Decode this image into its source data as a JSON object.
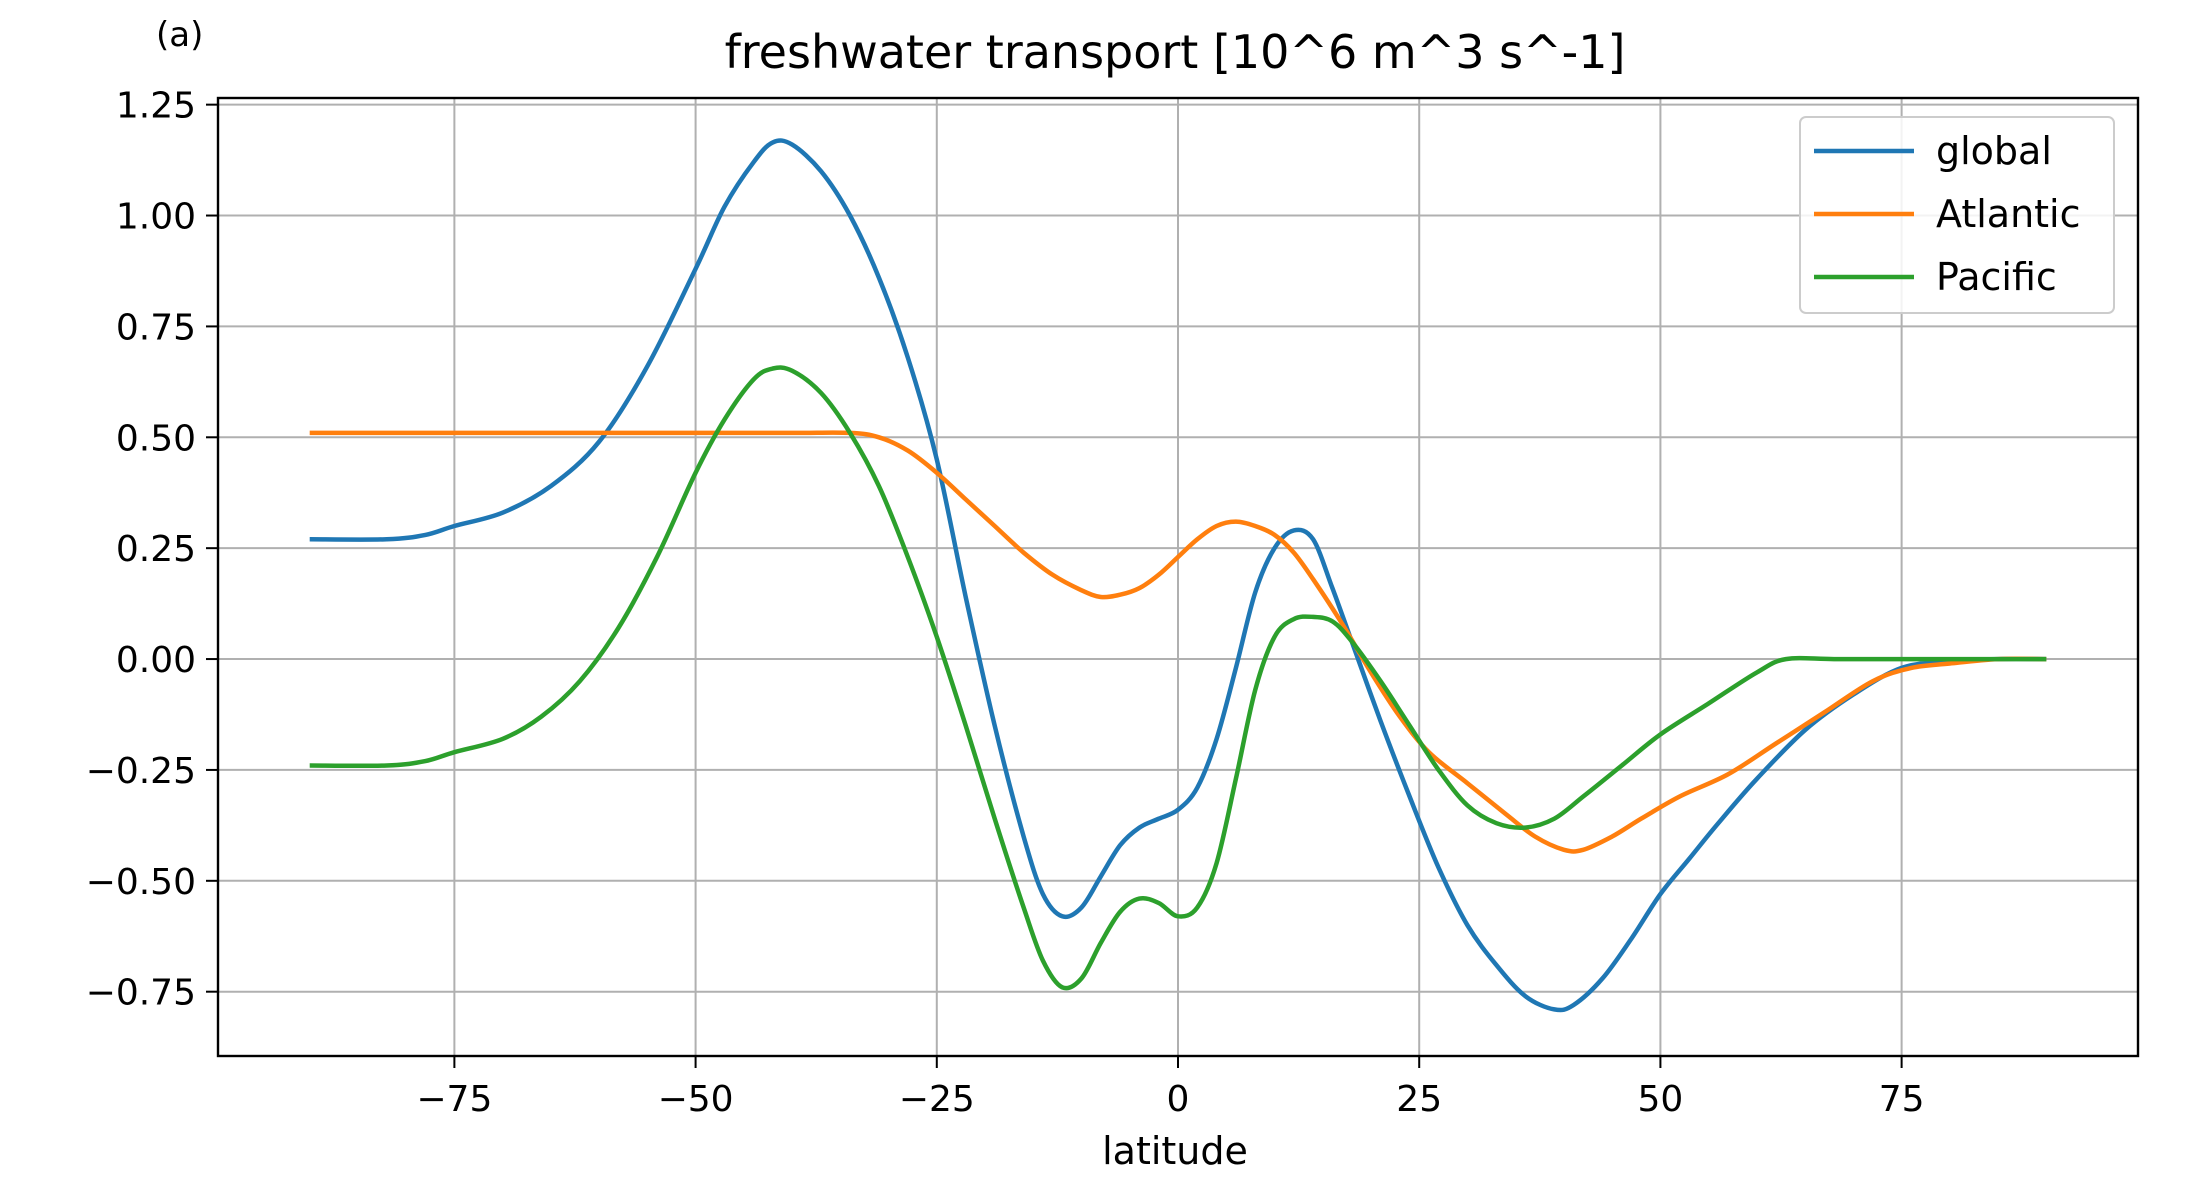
{
  "chart_data": {
    "type": "line",
    "panel_label": "(a)",
    "title": "freshwater transport [10^6 m^3 s^-1]",
    "xlabel": "latitude",
    "ylabel": "",
    "xlim": [
      -99.5,
      99.5
    ],
    "ylim": [
      -0.895,
      1.265
    ],
    "xticks": [
      -75,
      -50,
      -25,
      0,
      25,
      50,
      75
    ],
    "xtick_labels": [
      "−75",
      "−50",
      "−25",
      "0",
      "25",
      "50",
      "75"
    ],
    "yticks": [
      -0.75,
      -0.5,
      -0.25,
      0.0,
      0.25,
      0.5,
      0.75,
      1.0,
      1.25
    ],
    "ytick_labels": [
      "−0.75",
      "−0.50",
      "−0.25",
      "0.00",
      "0.25",
      "0.50",
      "0.75",
      "1.00",
      "1.25"
    ],
    "grid": true,
    "legend_position": "top-right",
    "series": [
      {
        "name": "global",
        "color": "#1f77b4",
        "points": [
          [
            -90,
            0.27
          ],
          [
            -82,
            0.27
          ],
          [
            -78,
            0.28
          ],
          [
            -75,
            0.3
          ],
          [
            -70,
            0.33
          ],
          [
            -65,
            0.39
          ],
          [
            -60,
            0.49
          ],
          [
            -55,
            0.66
          ],
          [
            -50,
            0.88
          ],
          [
            -47,
            1.02
          ],
          [
            -44,
            1.12
          ],
          [
            -42,
            1.165
          ],
          [
            -40,
            1.16
          ],
          [
            -37,
            1.1
          ],
          [
            -34,
            1.0
          ],
          [
            -31,
            0.86
          ],
          [
            -28,
            0.68
          ],
          [
            -25,
            0.45
          ],
          [
            -22,
            0.14
          ],
          [
            -19,
            -0.15
          ],
          [
            -16,
            -0.4
          ],
          [
            -14,
            -0.53
          ],
          [
            -12,
            -0.58
          ],
          [
            -10,
            -0.56
          ],
          [
            -8,
            -0.49
          ],
          [
            -6,
            -0.42
          ],
          [
            -4,
            -0.38
          ],
          [
            -2,
            -0.36
          ],
          [
            0,
            -0.34
          ],
          [
            2,
            -0.29
          ],
          [
            4,
            -0.18
          ],
          [
            6,
            -0.02
          ],
          [
            8,
            0.15
          ],
          [
            10,
            0.25
          ],
          [
            12,
            0.29
          ],
          [
            14,
            0.27
          ],
          [
            16,
            0.16
          ],
          [
            18,
            0.04
          ],
          [
            21,
            -0.14
          ],
          [
            24,
            -0.31
          ],
          [
            27,
            -0.47
          ],
          [
            30,
            -0.6
          ],
          [
            33,
            -0.69
          ],
          [
            36,
            -0.76
          ],
          [
            39,
            -0.79
          ],
          [
            41,
            -0.78
          ],
          [
            44,
            -0.72
          ],
          [
            47,
            -0.63
          ],
          [
            50,
            -0.53
          ],
          [
            53,
            -0.45
          ],
          [
            56,
            -0.37
          ],
          [
            60,
            -0.27
          ],
          [
            65,
            -0.16
          ],
          [
            70,
            -0.08
          ],
          [
            75,
            -0.02
          ],
          [
            80,
            -0.005
          ],
          [
            85,
            0.0
          ],
          [
            90,
            0.0
          ]
        ]
      },
      {
        "name": "Atlantic",
        "color": "#ff7f0e",
        "points": [
          [
            -90,
            0.51
          ],
          [
            -80,
            0.51
          ],
          [
            -70,
            0.51
          ],
          [
            -60,
            0.51
          ],
          [
            -50,
            0.51
          ],
          [
            -40,
            0.51
          ],
          [
            -34,
            0.51
          ],
          [
            -31,
            0.5
          ],
          [
            -28,
            0.47
          ],
          [
            -25,
            0.42
          ],
          [
            -22,
            0.36
          ],
          [
            -19,
            0.3
          ],
          [
            -16,
            0.24
          ],
          [
            -13,
            0.19
          ],
          [
            -10,
            0.155
          ],
          [
            -8,
            0.14
          ],
          [
            -6,
            0.145
          ],
          [
            -4,
            0.16
          ],
          [
            -2,
            0.19
          ],
          [
            0,
            0.23
          ],
          [
            2,
            0.27
          ],
          [
            4,
            0.3
          ],
          [
            6,
            0.31
          ],
          [
            8,
            0.3
          ],
          [
            10,
            0.28
          ],
          [
            12,
            0.24
          ],
          [
            14,
            0.18
          ],
          [
            17,
            0.08
          ],
          [
            20,
            -0.03
          ],
          [
            23,
            -0.13
          ],
          [
            26,
            -0.21
          ],
          [
            30,
            -0.28
          ],
          [
            34,
            -0.35
          ],
          [
            37,
            -0.4
          ],
          [
            40,
            -0.43
          ],
          [
            42,
            -0.43
          ],
          [
            45,
            -0.4
          ],
          [
            48,
            -0.36
          ],
          [
            52,
            -0.31
          ],
          [
            57,
            -0.26
          ],
          [
            62,
            -0.19
          ],
          [
            67,
            -0.12
          ],
          [
            72,
            -0.05
          ],
          [
            76,
            -0.02
          ],
          [
            80,
            -0.01
          ],
          [
            85,
            0.0
          ],
          [
            90,
            0.0
          ]
        ]
      },
      {
        "name": "Pacific",
        "color": "#2ca02c",
        "points": [
          [
            -90,
            -0.24
          ],
          [
            -82,
            -0.24
          ],
          [
            -78,
            -0.23
          ],
          [
            -75,
            -0.21
          ],
          [
            -70,
            -0.18
          ],
          [
            -66,
            -0.13
          ],
          [
            -62,
            -0.05
          ],
          [
            -58,
            0.07
          ],
          [
            -54,
            0.23
          ],
          [
            -50,
            0.42
          ],
          [
            -47,
            0.54
          ],
          [
            -44,
            0.63
          ],
          [
            -42,
            0.655
          ],
          [
            -40,
            0.65
          ],
          [
            -37,
            0.6
          ],
          [
            -34,
            0.51
          ],
          [
            -31,
            0.39
          ],
          [
            -28,
            0.23
          ],
          [
            -25,
            0.05
          ],
          [
            -22,
            -0.15
          ],
          [
            -19,
            -0.36
          ],
          [
            -16,
            -0.56
          ],
          [
            -14,
            -0.68
          ],
          [
            -12,
            -0.74
          ],
          [
            -10,
            -0.72
          ],
          [
            -8,
            -0.64
          ],
          [
            -6,
            -0.57
          ],
          [
            -4,
            -0.54
          ],
          [
            -2,
            -0.55
          ],
          [
            0,
            -0.58
          ],
          [
            2,
            -0.56
          ],
          [
            4,
            -0.46
          ],
          [
            6,
            -0.27
          ],
          [
            8,
            -0.07
          ],
          [
            10,
            0.05
          ],
          [
            12,
            0.09
          ],
          [
            14,
            0.095
          ],
          [
            16,
            0.085
          ],
          [
            18,
            0.04
          ],
          [
            21,
            -0.05
          ],
          [
            24,
            -0.15
          ],
          [
            27,
            -0.25
          ],
          [
            30,
            -0.33
          ],
          [
            33,
            -0.37
          ],
          [
            36,
            -0.38
          ],
          [
            39,
            -0.36
          ],
          [
            42,
            -0.31
          ],
          [
            46,
            -0.24
          ],
          [
            50,
            -0.17
          ],
          [
            55,
            -0.1
          ],
          [
            60,
            -0.03
          ],
          [
            63,
            0.0
          ],
          [
            68,
            0.0
          ],
          [
            75,
            0.0
          ],
          [
            80,
            0.0
          ],
          [
            85,
            0.0
          ],
          [
            90,
            0.0
          ]
        ]
      }
    ]
  }
}
